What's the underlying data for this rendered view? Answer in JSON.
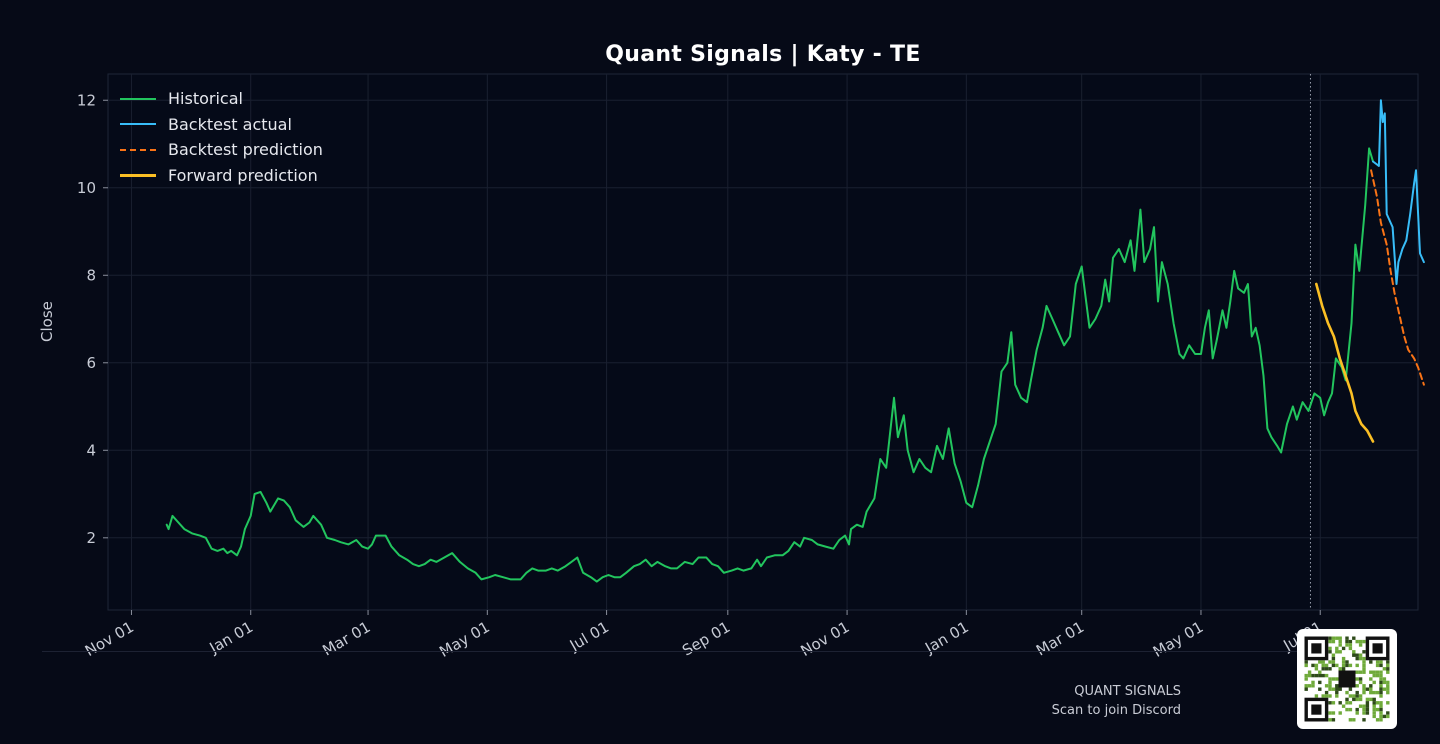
{
  "chart_data": {
    "type": "line",
    "title": "Quant Signals | Katy - TE",
    "ylabel": "Close",
    "xlabel": "",
    "ylim": [
      0.35,
      12.6
    ],
    "x_range": [
      "2023-10-20",
      "2025-08-20"
    ],
    "yticks": [
      2,
      4,
      6,
      8,
      10,
      12
    ],
    "xticks": [
      {
        "date": "2023-11-01",
        "label": "Nov 01"
      },
      {
        "date": "2024-01-01",
        "label": "Jan 01"
      },
      {
        "date": "2024-03-01",
        "label": "Mar 01"
      },
      {
        "date": "2024-05-01",
        "label": "May 01"
      },
      {
        "date": "2024-07-01",
        "label": "Jul 01"
      },
      {
        "date": "2024-09-01",
        "label": "Sep 01"
      },
      {
        "date": "2024-11-01",
        "label": "Nov 01"
      },
      {
        "date": "2025-01-01",
        "label": "Jan 01"
      },
      {
        "date": "2025-03-01",
        "label": "Mar 01"
      },
      {
        "date": "2025-05-01",
        "label": "May 01"
      },
      {
        "date": "2025-07-01",
        "label": "Jul 01"
      }
    ],
    "grid": true,
    "legend_position": "top-left",
    "cutoff_date": "2025-06-26",
    "series": [
      {
        "name": "Historical",
        "color": "#22c55e",
        "style": "solid",
        "points": [
          [
            "2023-11-19",
            2.3
          ],
          [
            "2023-11-20",
            2.2
          ],
          [
            "2023-11-22",
            2.5
          ],
          [
            "2023-11-25",
            2.35
          ],
          [
            "2023-11-28",
            2.2
          ],
          [
            "2023-12-02",
            2.1
          ],
          [
            "2023-12-06",
            2.05
          ],
          [
            "2023-12-09",
            2.0
          ],
          [
            "2023-12-12",
            1.75
          ],
          [
            "2023-12-15",
            1.7
          ],
          [
            "2023-12-18",
            1.75
          ],
          [
            "2023-12-20",
            1.65
          ],
          [
            "2023-12-22",
            1.7
          ],
          [
            "2023-12-25",
            1.6
          ],
          [
            "2023-12-27",
            1.8
          ],
          [
            "2023-12-29",
            2.2
          ],
          [
            "2024-01-01",
            2.5
          ],
          [
            "2024-01-03",
            3.0
          ],
          [
            "2024-01-06",
            3.05
          ],
          [
            "2024-01-09",
            2.8
          ],
          [
            "2024-01-11",
            2.6
          ],
          [
            "2024-01-13",
            2.75
          ],
          [
            "2024-01-15",
            2.9
          ],
          [
            "2024-01-18",
            2.85
          ],
          [
            "2024-01-21",
            2.7
          ],
          [
            "2024-01-24",
            2.4
          ],
          [
            "2024-01-28",
            2.25
          ],
          [
            "2024-01-31",
            2.35
          ],
          [
            "2024-02-02",
            2.5
          ],
          [
            "2024-02-06",
            2.3
          ],
          [
            "2024-02-09",
            2.0
          ],
          [
            "2024-02-13",
            1.95
          ],
          [
            "2024-02-16",
            1.9
          ],
          [
            "2024-02-20",
            1.85
          ],
          [
            "2024-02-24",
            1.95
          ],
          [
            "2024-02-27",
            1.8
          ],
          [
            "2024-03-01",
            1.75
          ],
          [
            "2024-03-03",
            1.85
          ],
          [
            "2024-03-05",
            2.05
          ],
          [
            "2024-03-10",
            2.05
          ],
          [
            "2024-03-13",
            1.8
          ],
          [
            "2024-03-17",
            1.6
          ],
          [
            "2024-03-21",
            1.5
          ],
          [
            "2024-03-24",
            1.4
          ],
          [
            "2024-03-27",
            1.35
          ],
          [
            "2024-03-30",
            1.4
          ],
          [
            "2024-04-02",
            1.5
          ],
          [
            "2024-04-05",
            1.45
          ],
          [
            "2024-04-09",
            1.55
          ],
          [
            "2024-04-13",
            1.65
          ],
          [
            "2024-04-17",
            1.45
          ],
          [
            "2024-04-21",
            1.3
          ],
          [
            "2024-04-25",
            1.2
          ],
          [
            "2024-04-28",
            1.05
          ],
          [
            "2024-05-02",
            1.1
          ],
          [
            "2024-05-05",
            1.15
          ],
          [
            "2024-05-09",
            1.1
          ],
          [
            "2024-05-13",
            1.05
          ],
          [
            "2024-05-18",
            1.05
          ],
          [
            "2024-05-21",
            1.2
          ],
          [
            "2024-05-24",
            1.3
          ],
          [
            "2024-05-27",
            1.25
          ],
          [
            "2024-05-31",
            1.25
          ],
          [
            "2024-06-03",
            1.3
          ],
          [
            "2024-06-06",
            1.25
          ],
          [
            "2024-06-10",
            1.35
          ],
          [
            "2024-06-13",
            1.45
          ],
          [
            "2024-06-16",
            1.55
          ],
          [
            "2024-06-19",
            1.2
          ],
          [
            "2024-06-23",
            1.1
          ],
          [
            "2024-06-26",
            1.0
          ],
          [
            "2024-06-29",
            1.1
          ],
          [
            "2024-07-02",
            1.15
          ],
          [
            "2024-07-05",
            1.1
          ],
          [
            "2024-07-08",
            1.1
          ],
          [
            "2024-07-11",
            1.2
          ],
          [
            "2024-07-15",
            1.35
          ],
          [
            "2024-07-18",
            1.4
          ],
          [
            "2024-07-21",
            1.5
          ],
          [
            "2024-07-24",
            1.35
          ],
          [
            "2024-07-27",
            1.45
          ],
          [
            "2024-07-31",
            1.35
          ],
          [
            "2024-08-03",
            1.3
          ],
          [
            "2024-08-06",
            1.3
          ],
          [
            "2024-08-10",
            1.45
          ],
          [
            "2024-08-14",
            1.4
          ],
          [
            "2024-08-17",
            1.55
          ],
          [
            "2024-08-21",
            1.55
          ],
          [
            "2024-08-24",
            1.4
          ],
          [
            "2024-08-27",
            1.35
          ],
          [
            "2024-08-30",
            1.2
          ],
          [
            "2024-09-03",
            1.25
          ],
          [
            "2024-09-06",
            1.3
          ],
          [
            "2024-09-09",
            1.25
          ],
          [
            "2024-09-13",
            1.3
          ],
          [
            "2024-09-16",
            1.5
          ],
          [
            "2024-09-18",
            1.35
          ],
          [
            "2024-09-21",
            1.55
          ],
          [
            "2024-09-25",
            1.6
          ],
          [
            "2024-09-29",
            1.6
          ],
          [
            "2024-10-02",
            1.7
          ],
          [
            "2024-10-05",
            1.9
          ],
          [
            "2024-10-08",
            1.8
          ],
          [
            "2024-10-10",
            2.0
          ],
          [
            "2024-10-14",
            1.95
          ],
          [
            "2024-10-17",
            1.85
          ],
          [
            "2024-10-21",
            1.8
          ],
          [
            "2024-10-25",
            1.75
          ],
          [
            "2024-10-28",
            1.95
          ],
          [
            "2024-10-31",
            2.05
          ],
          [
            "2024-11-02",
            1.85
          ],
          [
            "2024-11-03",
            2.2
          ],
          [
            "2024-11-06",
            2.3
          ],
          [
            "2024-11-09",
            2.25
          ],
          [
            "2024-11-11",
            2.6
          ],
          [
            "2024-11-15",
            2.9
          ],
          [
            "2024-11-18",
            3.8
          ],
          [
            "2024-11-21",
            3.6
          ],
          [
            "2024-11-25",
            5.2
          ],
          [
            "2024-11-27",
            4.3
          ],
          [
            "2024-11-30",
            4.8
          ],
          [
            "2024-12-02",
            4.0
          ],
          [
            "2024-12-05",
            3.5
          ],
          [
            "2024-12-08",
            3.8
          ],
          [
            "2024-12-11",
            3.6
          ],
          [
            "2024-12-14",
            3.5
          ],
          [
            "2024-12-17",
            4.1
          ],
          [
            "2024-12-20",
            3.8
          ],
          [
            "2024-12-23",
            4.5
          ],
          [
            "2024-12-26",
            3.7
          ],
          [
            "2024-12-29",
            3.3
          ],
          [
            "2025-01-01",
            2.8
          ],
          [
            "2025-01-04",
            2.7
          ],
          [
            "2025-01-07",
            3.2
          ],
          [
            "2025-01-10",
            3.8
          ],
          [
            "2025-01-13",
            4.2
          ],
          [
            "2025-01-16",
            4.6
          ],
          [
            "2025-01-19",
            5.8
          ],
          [
            "2025-01-22",
            6.0
          ],
          [
            "2025-01-24",
            6.7
          ],
          [
            "2025-01-26",
            5.5
          ],
          [
            "2025-01-29",
            5.2
          ],
          [
            "2025-02-01",
            5.1
          ],
          [
            "2025-02-03",
            5.6
          ],
          [
            "2025-02-06",
            6.3
          ],
          [
            "2025-02-09",
            6.8
          ],
          [
            "2025-02-11",
            7.3
          ],
          [
            "2025-02-14",
            7.0
          ],
          [
            "2025-02-17",
            6.7
          ],
          [
            "2025-02-20",
            6.4
          ],
          [
            "2025-02-23",
            6.6
          ],
          [
            "2025-02-26",
            7.8
          ],
          [
            "2025-03-01",
            8.2
          ],
          [
            "2025-03-03",
            7.5
          ],
          [
            "2025-03-05",
            6.8
          ],
          [
            "2025-03-08",
            7.0
          ],
          [
            "2025-03-11",
            7.3
          ],
          [
            "2025-03-13",
            7.9
          ],
          [
            "2025-03-15",
            7.4
          ],
          [
            "2025-03-17",
            8.4
          ],
          [
            "2025-03-20",
            8.6
          ],
          [
            "2025-03-23",
            8.3
          ],
          [
            "2025-03-26",
            8.8
          ],
          [
            "2025-03-28",
            8.1
          ],
          [
            "2025-03-31",
            9.5
          ],
          [
            "2025-04-02",
            8.3
          ],
          [
            "2025-04-05",
            8.6
          ],
          [
            "2025-04-07",
            9.1
          ],
          [
            "2025-04-09",
            7.4
          ],
          [
            "2025-04-11",
            8.3
          ],
          [
            "2025-04-14",
            7.8
          ],
          [
            "2025-04-17",
            6.9
          ],
          [
            "2025-04-20",
            6.2
          ],
          [
            "2025-04-22",
            6.1
          ],
          [
            "2025-04-25",
            6.4
          ],
          [
            "2025-04-28",
            6.2
          ],
          [
            "2025-05-01",
            6.2
          ],
          [
            "2025-05-03",
            6.8
          ],
          [
            "2025-05-05",
            7.2
          ],
          [
            "2025-05-07",
            6.1
          ],
          [
            "2025-05-09",
            6.5
          ],
          [
            "2025-05-12",
            7.2
          ],
          [
            "2025-05-14",
            6.8
          ],
          [
            "2025-05-16",
            7.4
          ],
          [
            "2025-05-18",
            8.1
          ],
          [
            "2025-05-20",
            7.7
          ],
          [
            "2025-05-23",
            7.6
          ],
          [
            "2025-05-25",
            7.8
          ],
          [
            "2025-05-27",
            6.6
          ],
          [
            "2025-05-29",
            6.8
          ],
          [
            "2025-05-31",
            6.4
          ],
          [
            "2025-06-02",
            5.7
          ],
          [
            "2025-06-04",
            4.5
          ],
          [
            "2025-06-06",
            4.3
          ],
          [
            "2025-06-09",
            4.1
          ],
          [
            "2025-06-11",
            3.95
          ],
          [
            "2025-06-14",
            4.6
          ],
          [
            "2025-06-17",
            5.0
          ],
          [
            "2025-06-19",
            4.7
          ],
          [
            "2025-06-22",
            5.1
          ],
          [
            "2025-06-25",
            4.9
          ],
          [
            "2025-06-28",
            5.3
          ],
          [
            "2025-07-01",
            5.2
          ],
          [
            "2025-07-03",
            4.8
          ],
          [
            "2025-07-05",
            5.1
          ],
          [
            "2025-07-07",
            5.3
          ],
          [
            "2025-07-09",
            6.1
          ],
          [
            "2025-07-12",
            5.9
          ],
          [
            "2025-07-14",
            5.6
          ],
          [
            "2025-07-17",
            6.9
          ],
          [
            "2025-07-19",
            8.7
          ],
          [
            "2025-07-21",
            8.1
          ],
          [
            "2025-07-24",
            9.6
          ],
          [
            "2025-07-26",
            10.9
          ],
          [
            "2025-07-28",
            10.6
          ]
        ]
      },
      {
        "name": "Backtest actual",
        "color": "#38bdf8",
        "style": "solid",
        "points": [
          [
            "2025-07-28",
            10.6
          ],
          [
            "2025-07-31",
            10.5
          ],
          [
            "2025-08-01",
            12.0
          ],
          [
            "2025-08-02",
            11.5
          ],
          [
            "2025-08-03",
            11.7
          ],
          [
            "2025-08-04",
            9.4
          ],
          [
            "2025-08-07",
            9.1
          ],
          [
            "2025-08-09",
            7.8
          ],
          [
            "2025-08-10",
            8.3
          ],
          [
            "2025-08-12",
            8.6
          ],
          [
            "2025-08-14",
            8.8
          ],
          [
            "2025-08-16",
            9.4
          ],
          [
            "2025-08-18",
            10.1
          ],
          [
            "2025-08-19",
            10.4
          ],
          [
            "2025-08-21",
            8.5
          ],
          [
            "2025-08-23",
            8.3
          ]
        ]
      },
      {
        "name": "Backtest prediction",
        "color": "#f97316",
        "style": "dashed",
        "points": [
          [
            "2025-07-27",
            10.4
          ],
          [
            "2025-07-30",
            9.8
          ],
          [
            "2025-08-01",
            9.2
          ],
          [
            "2025-08-04",
            8.7
          ],
          [
            "2025-08-06",
            8.1
          ],
          [
            "2025-08-08",
            7.6
          ],
          [
            "2025-08-10",
            7.2
          ],
          [
            "2025-08-13",
            6.6
          ],
          [
            "2025-08-15",
            6.3
          ],
          [
            "2025-08-18",
            6.1
          ],
          [
            "2025-08-20",
            5.9
          ],
          [
            "2025-08-23",
            5.5
          ]
        ]
      },
      {
        "name": "Forward prediction",
        "color": "#fbbf24",
        "style": "solid",
        "points": [
          [
            "2025-06-29",
            7.8
          ],
          [
            "2025-07-02",
            7.3
          ],
          [
            "2025-07-05",
            6.9
          ],
          [
            "2025-07-08",
            6.6
          ],
          [
            "2025-07-11",
            6.1
          ],
          [
            "2025-07-14",
            5.7
          ],
          [
            "2025-07-17",
            5.3
          ],
          [
            "2025-07-19",
            4.9
          ],
          [
            "2025-07-22",
            4.6
          ],
          [
            "2025-07-25",
            4.45
          ],
          [
            "2025-07-28",
            4.2
          ]
        ]
      }
    ]
  },
  "footer": {
    "brand": "QUANT SIGNALS",
    "cta": "Scan to join Discord"
  }
}
